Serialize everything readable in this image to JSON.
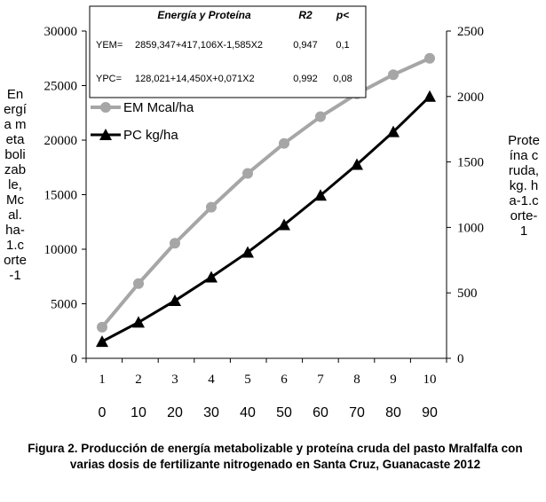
{
  "chart_data": {
    "type": "line",
    "categories": [
      "1",
      "2",
      "3",
      "4",
      "5",
      "6",
      "7",
      "8",
      "9",
      "10"
    ],
    "dose_labels": [
      "0",
      "10",
      "20",
      "30",
      "40",
      "50",
      "60",
      "70",
      "80",
      "90"
    ],
    "series": [
      {
        "name": "EM Mcal/ha",
        "axis": "left",
        "color": "#a6a6a6",
        "marker": "circle",
        "values": [
          2860,
          6850,
          10550,
          13850,
          16950,
          19700,
          22150,
          24250,
          26000,
          27500
        ]
      },
      {
        "name": "PC kg/ha",
        "axis": "right",
        "color": "#000000",
        "marker": "triangle",
        "values": [
          128,
          275,
          440,
          620,
          810,
          1020,
          1245,
          1480,
          1730,
          2000
        ]
      }
    ],
    "y_left": {
      "min": 0,
      "max": 30000,
      "ticks": [
        "0",
        "5000",
        "10000",
        "15000",
        "20000",
        "25000",
        "30000"
      ]
    },
    "y_right": {
      "min": 0,
      "max": 2500,
      "ticks": [
        "0",
        "500",
        "1000",
        "1500",
        "2000",
        "2500"
      ]
    },
    "ylabel_left": "Energía metabolizable, Mcal. ha-1.corte-1",
    "ylabel_right": "Proteína cruda, kg. ha-1.corte-1",
    "equations": {
      "header": {
        "title": "Energía y Proteína",
        "r2": "R2",
        "p": "p<"
      },
      "rows": [
        {
          "y": "YEM=",
          "eq": "2859,347+417,106X-1,585X2",
          "r2": "0,947",
          "p": "0,1"
        },
        {
          "y": "YPC=",
          "eq": "128,021+14,450X+0,071X2",
          "r2": "0,992",
          "p": "0,08"
        }
      ]
    },
    "legend": [
      "EM Mcal/ha",
      "PC kg/ha"
    ],
    "legend_position": "top-left",
    "grid": false
  },
  "caption": "Figura 2. Producción de energía metabolizable  y proteína cruda del pasto Mralfalfa con varias dosis de fertilizante nitrogenado en Santa Cruz, Guanacaste 2012"
}
